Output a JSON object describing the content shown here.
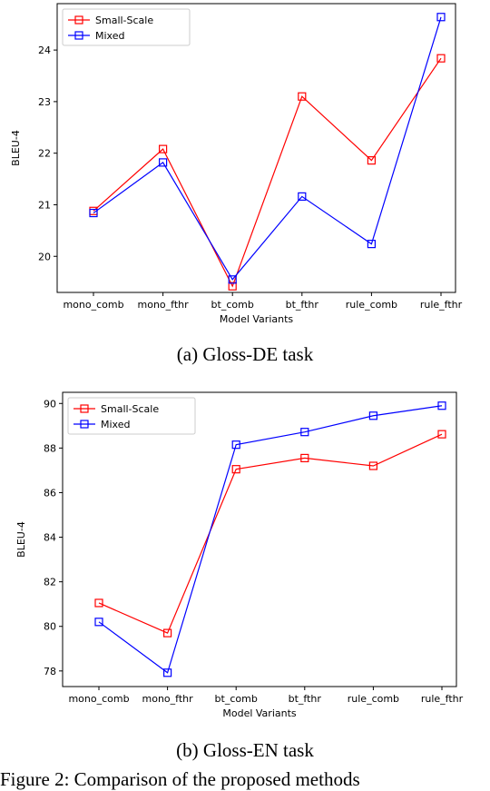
{
  "chart_data": [
    {
      "type": "line",
      "caption": "(a) Gloss-DE task",
      "xlabel": "Model Variants",
      "ylabel": "BLEU-4",
      "categories": [
        "mono_comb",
        "mono_fthr",
        "bt_comb",
        "bt_fthr",
        "rule_comb",
        "rule_fthr"
      ],
      "yticks": [
        20,
        21,
        22,
        23,
        24
      ],
      "ylim": [
        19.3,
        24.9
      ],
      "legend_position": "top-left",
      "grid": false,
      "series": [
        {
          "name": "Small-Scale",
          "color": "#ff0000",
          "values": [
            20.88,
            22.08,
            19.42,
            23.1,
            21.86,
            23.84
          ]
        },
        {
          "name": "Mixed",
          "color": "#0000ff",
          "values": [
            20.84,
            21.82,
            19.55,
            21.16,
            20.24,
            24.64
          ]
        }
      ]
    },
    {
      "type": "line",
      "caption": "(b) Gloss-EN task",
      "xlabel": "Model Variants",
      "ylabel": "BLEU-4",
      "categories": [
        "mono_comb",
        "mono_fthr",
        "bt_comb",
        "bt_fthr",
        "rule_comb",
        "rule_fthr"
      ],
      "yticks": [
        78,
        80,
        82,
        84,
        86,
        88,
        90
      ],
      "ylim": [
        77.3,
        90.5
      ],
      "legend_position": "top-left",
      "grid": false,
      "series": [
        {
          "name": "Small-Scale",
          "color": "#ff0000",
          "values": [
            81.05,
            79.7,
            87.05,
            87.55,
            87.2,
            88.62
          ]
        },
        {
          "name": "Mixed",
          "color": "#0000ff",
          "values": [
            80.2,
            77.92,
            88.15,
            88.72,
            89.45,
            89.9
          ]
        }
      ]
    }
  ],
  "figure_caption": "Figure 2:  Comparison of the proposed methods"
}
